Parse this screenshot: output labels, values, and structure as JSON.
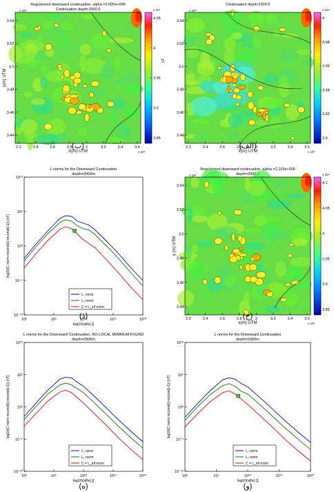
{
  "panels": [
    {
      "id": "map-ba",
      "type": "heatmap",
      "title": "Regularized downward continuation, alpha =2.605e+006",
      "subtitle": "Continuation depth:2000.0",
      "xlabel": "X(m) UTM",
      "ylabel": "y(m) UTM",
      "x_ticks": [
        "2.2",
        "2.4",
        "2.6",
        "2.8",
        "3",
        "3.2",
        "3.4",
        "3.6"
      ],
      "y_ticks": [
        "3.44",
        "3.46",
        "3.48",
        "3.5",
        "3.52",
        "3.54"
      ],
      "x_exp": "x 10⁵",
      "y_exp": "x 10⁶",
      "cbar_ticks": [
        "4.05",
        "4",
        "3.95",
        "3.9",
        "3.85"
      ],
      "cbar_exp": "x 10⁴",
      "cbar_unit": "nT",
      "letter": "(ب)"
    },
    {
      "id": "map-alef",
      "type": "heatmap",
      "title": "Continuation depth:2300.0",
      "subtitle": "",
      "xlabel": "X(m) UTM",
      "ylabel": "",
      "x_ticks": [
        "2.2",
        "2.4",
        "2.6",
        "2.8",
        "3",
        "3.2",
        "3.4",
        "3.6"
      ],
      "y_ticks": [
        "3.44",
        "3.46",
        "3.48",
        "3.5",
        "3.52",
        "3.54"
      ],
      "x_exp": "x 10⁵",
      "y_exp": "x 10⁶",
      "cbar_ticks": [
        "4",
        "3.98",
        "3.96",
        "3.94",
        "3.92",
        "3.9"
      ],
      "cbar_exp": "x 10⁴",
      "cbar_unit": "",
      "letter": "(الف)"
    },
    {
      "id": "lnorm-dal",
      "type": "line",
      "title": "L norms for the Downward Continuation",
      "subtitle": "depth=2000m",
      "xlabel": "log10(alfa) []",
      "ylabel": "log10(C·norm·reconst(i)-reconst(i-1)) [nT]",
      "x_ticks": [
        "10⁰",
        "10⁵",
        "10¹⁰",
        "10¹⁵",
        "10²⁰"
      ],
      "y_ticks": [
        "10¹⁰",
        "10⁵",
        "10⁰",
        "10⁻⁵",
        "10⁻¹⁰"
      ],
      "legend": [
        "L₁ norm",
        "L₂ norm",
        "C = L_inf norm"
      ],
      "letter": "(د)"
    },
    {
      "id": "map-jim",
      "type": "heatmap",
      "title": "Regularized downward continuation, alpha =2.153e+006",
      "subtitle": "depth=2300.0",
      "xlabel": "x(m) UTM",
      "ylabel": "y (m) UTM",
      "x_ticks": [
        "2.2",
        "2.4",
        "2.6",
        "2.8",
        "3",
        "3.2",
        "3.4",
        "3.6"
      ],
      "y_ticks": [
        "3.44",
        "3.46",
        "3.48",
        "3.5",
        "3.52",
        "3.54"
      ],
      "x_exp": "x 10⁵",
      "y_exp": "x 10⁶",
      "cbar_ticks": [
        "4.1",
        "4.05",
        "4",
        "3.95",
        "3.9",
        "3.85"
      ],
      "cbar_exp": "x 10⁴",
      "cbar_unit": "",
      "letter": "(ج)"
    },
    {
      "id": "lnorm-he",
      "type": "line",
      "title": "L norms for the Downward Continuation, NO LOCAL MINIMUM FOUND",
      "subtitle": "depth=2500m",
      "xlabel": "log10(alfa) []",
      "ylabel": "log10(C·norm·reconst(i)-reconst(i-1)) [nT]",
      "x_ticks": [
        "10⁰",
        "10⁵",
        "10¹⁰",
        "10¹⁵",
        "10²⁰"
      ],
      "y_ticks": [
        "10¹⁰",
        "10⁵",
        "10⁰",
        "10⁻⁵",
        "10⁻¹⁰"
      ],
      "legend": [
        "L₁ norm",
        "L₂ norm",
        "C = L_inf norm"
      ],
      "letter": "(ه)"
    },
    {
      "id": "lnorm-vav",
      "type": "line",
      "title": "L norms for the Downward Continuation",
      "subtitle": "depth=2300m",
      "xlabel": "log10(alfa) []",
      "ylabel": "log10(C·norm·reconst(i)-reconst(i-1)) [nT]",
      "x_ticks": [
        "10⁰",
        "10⁵",
        "10¹⁰",
        "10¹⁵",
        "10²⁰"
      ],
      "y_ticks": [
        "10¹⁰",
        "10⁵",
        "10⁰",
        "10⁻⁵",
        "10⁻¹⁰"
      ],
      "legend": [
        "L₁ norm",
        "L₂ norm",
        "C = L_inf norm"
      ],
      "letter": "(و)"
    }
  ],
  "chart_data": [
    {
      "type": "heatmap",
      "title": "Regularized downward continuation, alpha =2.605e+006",
      "subtitle": "Continuation depth:2000.0",
      "xlabel": "X(m) UTM",
      "ylabel": "y(m) UTM",
      "xlim": [
        2.15,
        3.62
      ],
      "ylim": [
        3.43,
        3.545
      ],
      "clim": [
        3.85,
        4.05
      ],
      "colormap": [
        "#0000a0",
        "#0066ff",
        "#00ccff",
        "#33ff99",
        "#99ee33",
        "#ffee00",
        "#ff9900",
        "#ff2200",
        "#ff66ff"
      ]
    },
    {
      "type": "heatmap",
      "title": "Continuation depth:2300.0",
      "xlabel": "X(m) UTM",
      "xlim": [
        2.15,
        3.62
      ],
      "ylim": [
        3.43,
        3.545
      ],
      "clim": [
        3.9,
        4.0
      ]
    },
    {
      "type": "line",
      "title": "L norms for the Downward Continuation",
      "subtitle": "depth=2000m",
      "xlabel": "log10(alfa) []",
      "ylabel": "log10(C·norm·reconst(i)-reconst(i-1)) [nT]",
      "xscale": "log",
      "yscale": "log",
      "xlim_exp": [
        0,
        20
      ],
      "ylim_exp": [
        -10,
        10
      ],
      "series": [
        {
          "name": "L₁ norm",
          "color": "#0000ff",
          "log10_x": [
            0,
            2,
            4,
            6,
            7,
            8,
            9,
            10,
            11,
            12,
            14,
            16,
            18,
            20
          ],
          "log10_y": [
            -1.8,
            0.3,
            2.2,
            4.0,
            4.4,
            4.3,
            3.6,
            3.3,
            3.0,
            2.3,
            0.6,
            -1.2,
            -3.2,
            -5.0
          ]
        },
        {
          "name": "L₂ norm",
          "color": "#008000",
          "log10_x": [
            0,
            2,
            4,
            6,
            7,
            8,
            9,
            10,
            11,
            12,
            14,
            16,
            18,
            20
          ],
          "log10_y": [
            -2.2,
            -0.1,
            1.8,
            3.4,
            3.8,
            3.6,
            2.9,
            2.5,
            2.3,
            1.6,
            -0.1,
            -1.9,
            -3.9,
            -5.8
          ]
        },
        {
          "name": "C = L_inf norm",
          "color": "#ff0000",
          "log10_x": [
            0,
            2,
            4,
            6,
            7,
            8,
            9,
            10,
            11,
            12,
            14,
            16,
            18,
            20
          ],
          "log10_y": [
            -3.2,
            -1.1,
            0.8,
            2.4,
            2.8,
            2.5,
            1.7,
            0.9,
            0.3,
            -0.3,
            -2.1,
            -4.0,
            -6.0,
            -7.8
          ]
        }
      ],
      "marker": {
        "log10_x": 8.5,
        "log10_y": 2.2,
        "color": "#33cc33"
      },
      "legend": "bottom-center"
    },
    {
      "type": "heatmap",
      "title": "Regularized downward continuation, alpha =2.153e+006",
      "subtitle": "depth=2300.0",
      "xlabel": "x(m) UTM",
      "ylabel": "y (m) UTM",
      "xlim": [
        2.15,
        3.62
      ],
      "ylim": [
        3.43,
        3.545
      ],
      "clim": [
        3.85,
        4.1
      ]
    },
    {
      "type": "line",
      "title": "L norms for the Downward Continuation, NO LOCAL MINIMUM FOUND",
      "subtitle": "depth=2500m",
      "xlabel": "log10(alfa) []",
      "ylabel": "log10(C·norm·reconst(i)-reconst(i-1)) [nT]",
      "xscale": "log",
      "yscale": "log",
      "xlim_exp": [
        0,
        20
      ],
      "ylim_exp": [
        -10,
        10
      ],
      "series": [
        {
          "name": "L₁ norm",
          "color": "#0000ff",
          "log10_x": [
            0,
            2,
            4,
            6,
            7,
            8,
            9,
            10,
            12,
            14,
            16,
            18,
            20
          ],
          "log10_y": [
            -1.5,
            0.6,
            2.6,
            4.3,
            4.6,
            4.5,
            3.8,
            3.2,
            1.5,
            -0.3,
            -2.1,
            -3.8,
            -5.4
          ]
        },
        {
          "name": "L₂ norm",
          "color": "#008000",
          "log10_x": [
            0,
            2,
            4,
            6,
            7,
            8,
            9,
            10,
            12,
            14,
            16,
            18,
            20
          ],
          "log10_y": [
            -2.0,
            0.1,
            2.0,
            3.4,
            3.7,
            3.4,
            2.8,
            2.2,
            0.5,
            -1.3,
            -3.1,
            -4.8,
            -6.4
          ]
        },
        {
          "name": "C = L_inf norm",
          "color": "#ff0000",
          "log10_x": [
            0,
            2,
            4,
            6,
            7,
            8,
            9,
            10,
            12,
            14,
            16,
            18,
            20
          ],
          "log10_y": [
            -3.0,
            -1.0,
            0.9,
            2.3,
            2.6,
            2.2,
            1.4,
            0.6,
            -1.2,
            -3.0,
            -4.9,
            -6.6,
            -8.2
          ]
        }
      ],
      "legend": "bottom-center"
    },
    {
      "type": "line",
      "title": "L norms for the Downward Continuation",
      "subtitle": "depth=2300m",
      "xlabel": "log10(alfa) []",
      "ylabel": "log10(C·norm·reconst(i)-reconst(i-1)) [nT]",
      "xscale": "log",
      "yscale": "log",
      "xlim_exp": [
        0,
        20
      ],
      "ylim_exp": [
        -10,
        10
      ],
      "series": [
        {
          "name": "L₁ norm",
          "color": "#0000ff",
          "log10_x": [
            0,
            2,
            4,
            6,
            7,
            8,
            9,
            10,
            12,
            14,
            16,
            18,
            20
          ],
          "log10_y": [
            -1.6,
            0.5,
            2.5,
            4.2,
            4.5,
            4.3,
            3.6,
            3.1,
            1.4,
            -0.4,
            -2.2,
            -3.9,
            -5.5
          ]
        },
        {
          "name": "L₂ norm",
          "color": "#008000",
          "log10_x": [
            0,
            2,
            4,
            6,
            7,
            8,
            9,
            10,
            12,
            14,
            16,
            18,
            20
          ],
          "log10_y": [
            -2.1,
            0.0,
            1.9,
            3.3,
            3.6,
            3.2,
            2.4,
            2.0,
            0.3,
            -1.5,
            -3.3,
            -5.0,
            -6.6
          ]
        },
        {
          "name": "C = L_inf norm",
          "color": "#ff0000",
          "log10_x": [
            0,
            2,
            4,
            6,
            7,
            8,
            9,
            10,
            12,
            14,
            16,
            18,
            20
          ],
          "log10_y": [
            -3.1,
            -1.1,
            0.8,
            2.2,
            2.5,
            2.0,
            1.2,
            0.4,
            -1.4,
            -3.2,
            -5.1,
            -6.8,
            -8.4
          ]
        }
      ],
      "marker": {
        "log10_x": 8.5,
        "log10_y": 1.7,
        "color": "#33cc33"
      },
      "legend": "bottom-center"
    }
  ]
}
